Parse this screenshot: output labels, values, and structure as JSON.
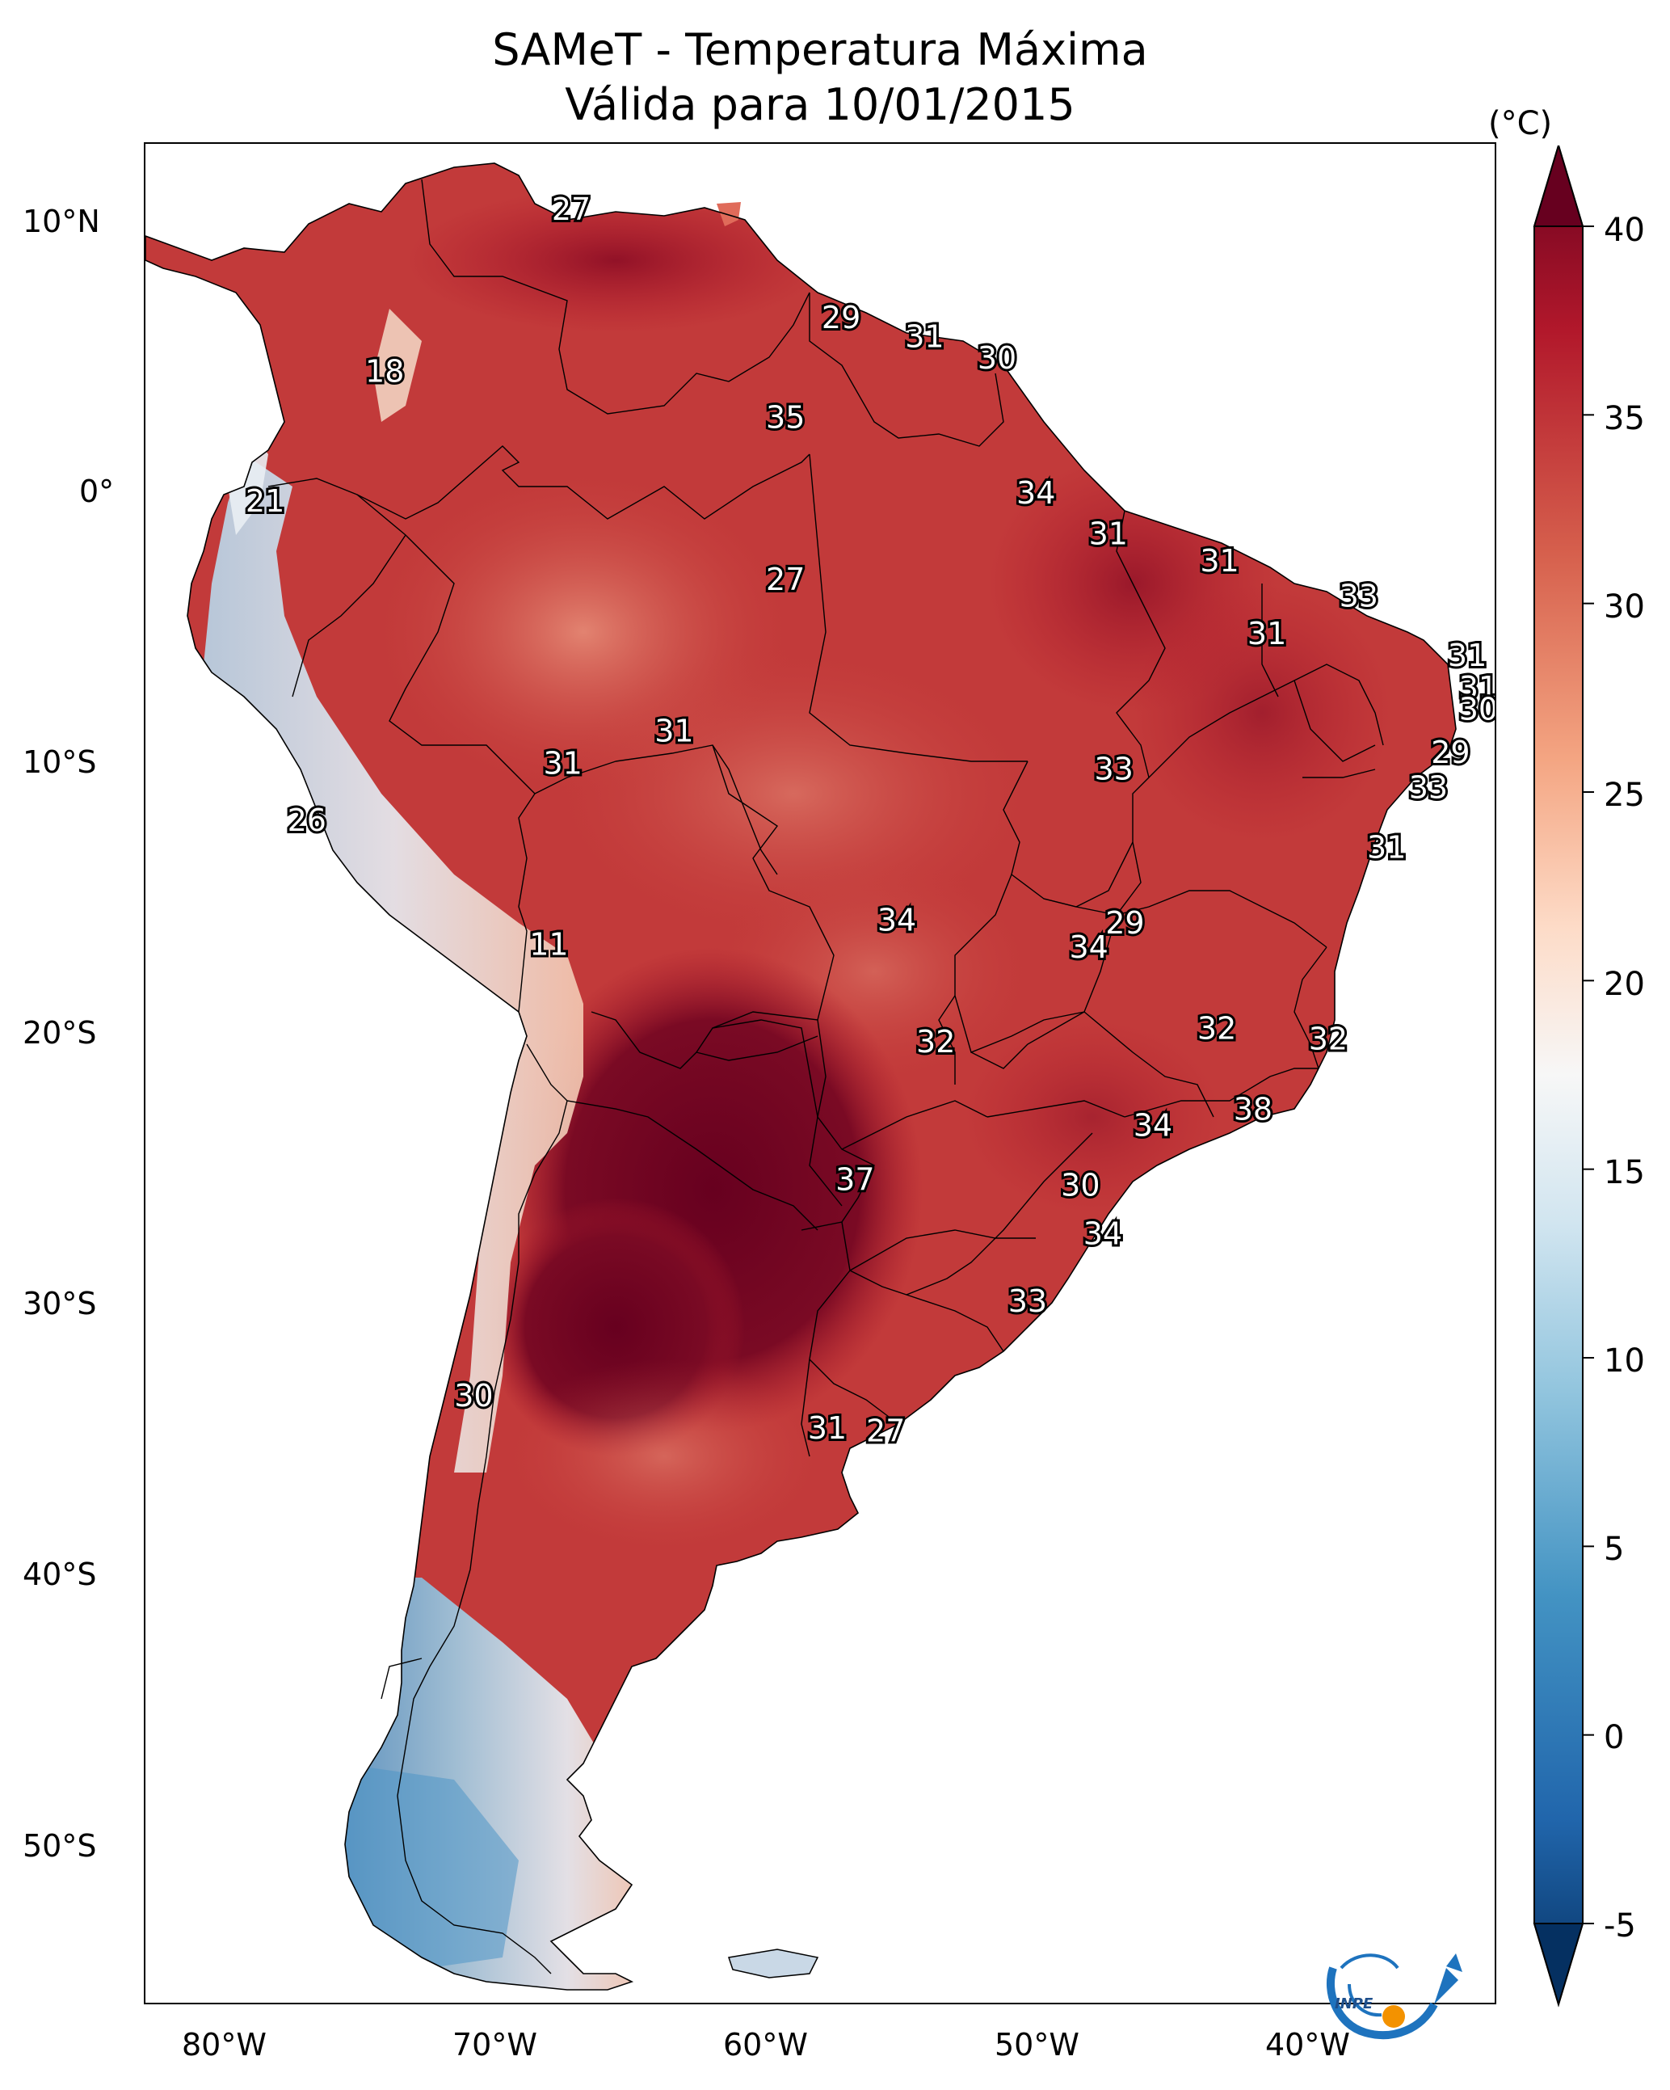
{
  "header": {
    "title_line1": "SAMeT - Temperatura Máxima",
    "title_line2": "Válida para 10/01/2015"
  },
  "axes": {
    "lat_labels": [
      "10°N",
      "0°",
      "10°S",
      "20°S",
      "30°S",
      "40°S",
      "50°S"
    ],
    "lon_labels": [
      "80°W",
      "70°W",
      "60°W",
      "50°W",
      "40°W"
    ]
  },
  "colorbar": {
    "unit": "(°C)",
    "ticks": [
      "40",
      "35",
      "30",
      "25",
      "20",
      "15",
      "10",
      "5",
      "0",
      "-5"
    ],
    "min": -5,
    "max": 40,
    "colors_low_to_high": [
      "#053061",
      "#2166ac",
      "#4393c3",
      "#92c5de",
      "#d1e5f0",
      "#f7f7f7",
      "#fddbc7",
      "#f4a582",
      "#d6604d",
      "#b2182b",
      "#67001f"
    ]
  },
  "map_labels": [
    {
      "text": "27",
      "lon": -67.5,
      "lat": 10.5
    },
    {
      "text": "29",
      "lon": -57.8,
      "lat": 6.5
    },
    {
      "text": "31",
      "lon": -54.8,
      "lat": 5.8
    },
    {
      "text": "30",
      "lon": -52.2,
      "lat": 5.0
    },
    {
      "text": "18",
      "lon": -74.2,
      "lat": 4.5
    },
    {
      "text": "35",
      "lon": -59.8,
      "lat": 2.8
    },
    {
      "text": "21",
      "lon": -78.5,
      "lat": -0.3
    },
    {
      "text": "34",
      "lon": -50.8,
      "lat": 0.0
    },
    {
      "text": "31",
      "lon": -48.2,
      "lat": -1.5
    },
    {
      "text": "31",
      "lon": -44.2,
      "lat": -2.5
    },
    {
      "text": "27",
      "lon": -59.8,
      "lat": -3.2
    },
    {
      "text": "33",
      "lon": -39.2,
      "lat": -3.8
    },
    {
      "text": "31",
      "lon": -42.5,
      "lat": -5.2
    },
    {
      "text": "31",
      "lon": -35.3,
      "lat": -6.0
    },
    {
      "text": "31",
      "lon": -34.9,
      "lat": -7.2
    },
    {
      "text": "30",
      "lon": -34.9,
      "lat": -8.0
    },
    {
      "text": "31",
      "lon": -63.8,
      "lat": -8.8
    },
    {
      "text": "29",
      "lon": -35.9,
      "lat": -9.6
    },
    {
      "text": "31",
      "lon": -67.8,
      "lat": -10.0
    },
    {
      "text": "33",
      "lon": -48.0,
      "lat": -10.2
    },
    {
      "text": "33",
      "lon": -36.7,
      "lat": -10.9
    },
    {
      "text": "26",
      "lon": -77.0,
      "lat": -12.1
    },
    {
      "text": "31",
      "lon": -38.2,
      "lat": -13.1
    },
    {
      "text": "34",
      "lon": -55.8,
      "lat": -15.8
    },
    {
      "text": "29",
      "lon": -47.6,
      "lat": -15.9
    },
    {
      "text": "11",
      "lon": -68.3,
      "lat": -16.7
    },
    {
      "text": "34",
      "lon": -48.9,
      "lat": -16.8
    },
    {
      "text": "32",
      "lon": -44.3,
      "lat": -19.8
    },
    {
      "text": "32",
      "lon": -40.3,
      "lat": -20.2
    },
    {
      "text": "32",
      "lon": -54.4,
      "lat": -20.3
    },
    {
      "text": "38",
      "lon": -43.0,
      "lat": -22.8
    },
    {
      "text": "34",
      "lon": -46.6,
      "lat": -23.4
    },
    {
      "text": "37",
      "lon": -57.3,
      "lat": -25.4
    },
    {
      "text": "30",
      "lon": -49.2,
      "lat": -25.6
    },
    {
      "text": "34",
      "lon": -48.4,
      "lat": -27.4
    },
    {
      "text": "33",
      "lon": -51.1,
      "lat": -29.9
    },
    {
      "text": "30",
      "lon": -71.0,
      "lat": -33.4
    },
    {
      "text": "31",
      "lon": -58.3,
      "lat": -34.6
    },
    {
      "text": "27",
      "lon": -56.2,
      "lat": -34.7
    }
  ],
  "logo": {
    "text": "INPE"
  }
}
